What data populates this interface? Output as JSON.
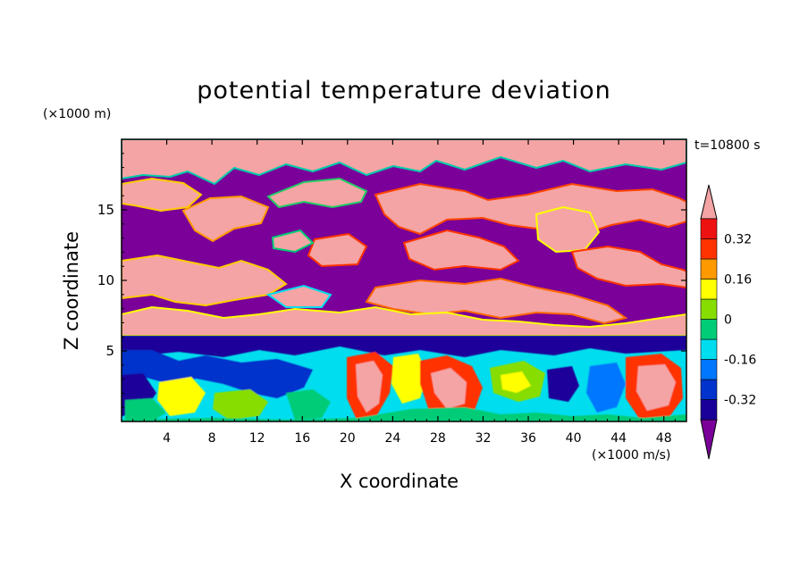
{
  "chart_data": {
    "type": "heatmap",
    "title": "potential temperature deviation",
    "xlabel": "X coordinate",
    "ylabel": "Z coordinate",
    "x_unit": "(×1000 m/s)",
    "z_unit": "(×1000 m)",
    "time_label": "t=10800 s",
    "xlim": [
      0,
      50
    ],
    "ylim": [
      0,
      20
    ],
    "x_ticks": [
      4,
      8,
      12,
      16,
      20,
      24,
      28,
      32,
      36,
      40,
      44,
      48
    ],
    "y_ticks": [
      5,
      10,
      15
    ],
    "colorbar": {
      "levels": [
        -0.4,
        -0.32,
        -0.24,
        -0.16,
        -0.08,
        0,
        0.08,
        0.16,
        0.24,
        0.32,
        0.4
      ],
      "labels": [
        "0.32",
        "0.16",
        "0",
        "-0.16",
        "-0.32"
      ],
      "label_values": [
        0.32,
        0.16,
        0,
        -0.16,
        -0.32
      ],
      "colors": [
        "#7a0099",
        "#1a0099",
        "#0033cc",
        "#0077ff",
        "#00ddee",
        "#00cc77",
        "#88dd00",
        "#ffff00",
        "#ff9900",
        "#ff3300",
        "#ee1111",
        "#f4a4a4"
      ],
      "over_color": "#f4a4a4",
      "under_color": "#7a0099",
      "extend": "both"
    }
  },
  "colors": {
    "background": "#ffffff",
    "pink": "#f4a4a4",
    "purple": "#7a0099",
    "dark_blue": "#1a0099"
  }
}
